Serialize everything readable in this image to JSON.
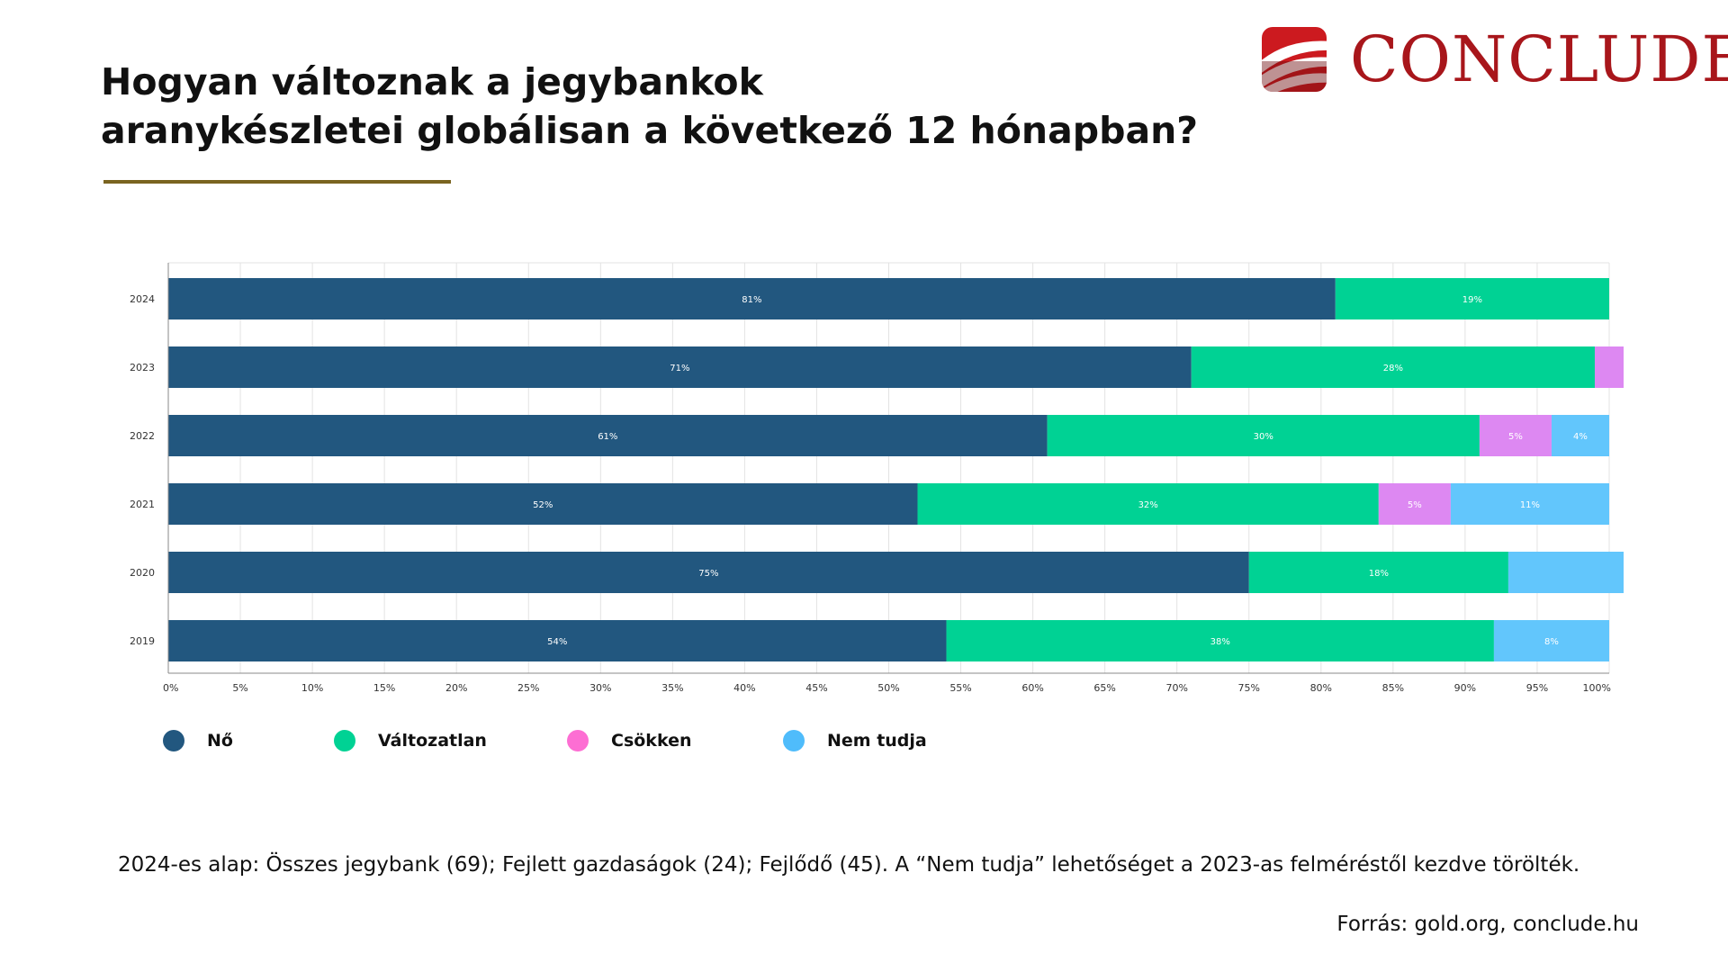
{
  "page": {
    "title_lines": [
      "Hogyan változnak a jegybankok",
      "aranykészletei globálisan a következő 12 hónapban?"
    ],
    "logo": {
      "name": "CONCLUDE",
      "icon": "conclude-logo-icon",
      "color": "#a8161b"
    },
    "note": "2024-es alap: Összes jegybank (69); Fejlett gazdaságok (24); Fejlődő (45). A “Nem tudja” lehetőséget a 2023-as felméréstől kezdve törölték.",
    "source": "Forrás: gold.org, conclude.hu"
  },
  "chart_data": {
    "type": "bar",
    "orientation": "horizontal",
    "stacked": true,
    "categories": [
      "2024",
      "2023",
      "2022",
      "2021",
      "2020",
      "2019"
    ],
    "series": [
      {
        "name": "Nő",
        "color": "#22577f",
        "values": [
          81,
          71,
          61,
          52,
          75,
          54
        ],
        "labels": [
          "81%",
          "71%",
          "61%",
          "52%",
          "75%",
          "54%"
        ]
      },
      {
        "name": "Változatlan",
        "color": "#00d294",
        "values": [
          19,
          28,
          30,
          32,
          18,
          38
        ],
        "labels": [
          "19%",
          "28%",
          "30%",
          "32%",
          "18%",
          "38%"
        ]
      },
      {
        "name": "Csökken",
        "color": "#dd88f2",
        "values": [
          0,
          2,
          5,
          5,
          0,
          0
        ],
        "labels": [
          "",
          "",
          "5%",
          "5%",
          "",
          ""
        ]
      },
      {
        "name": "Nem tudja",
        "color": "#62c6fc",
        "values": [
          0,
          0,
          4,
          11,
          8,
          8
        ],
        "labels": [
          "",
          "",
          "4%",
          "11%",
          "",
          "8%"
        ]
      }
    ],
    "xlim": [
      0,
      100
    ],
    "xticks": [
      "0%",
      "5%",
      "10%",
      "15%",
      "20%",
      "25%",
      "30%",
      "35%",
      "40%",
      "45%",
      "50%",
      "55%",
      "60%",
      "65%",
      "70%",
      "75%",
      "80%",
      "85%",
      "90%",
      "95%",
      "100%"
    ],
    "grid": true,
    "legend": {
      "position": "bottom-left",
      "items": [
        {
          "name": "Nő",
          "color": "#22577f"
        },
        {
          "name": "Változatlan",
          "color": "#00d294"
        },
        {
          "name": "Csökken",
          "color": "#fd6ed3"
        },
        {
          "name": "Nem tudja",
          "color": "#4fbcfb"
        }
      ]
    }
  }
}
